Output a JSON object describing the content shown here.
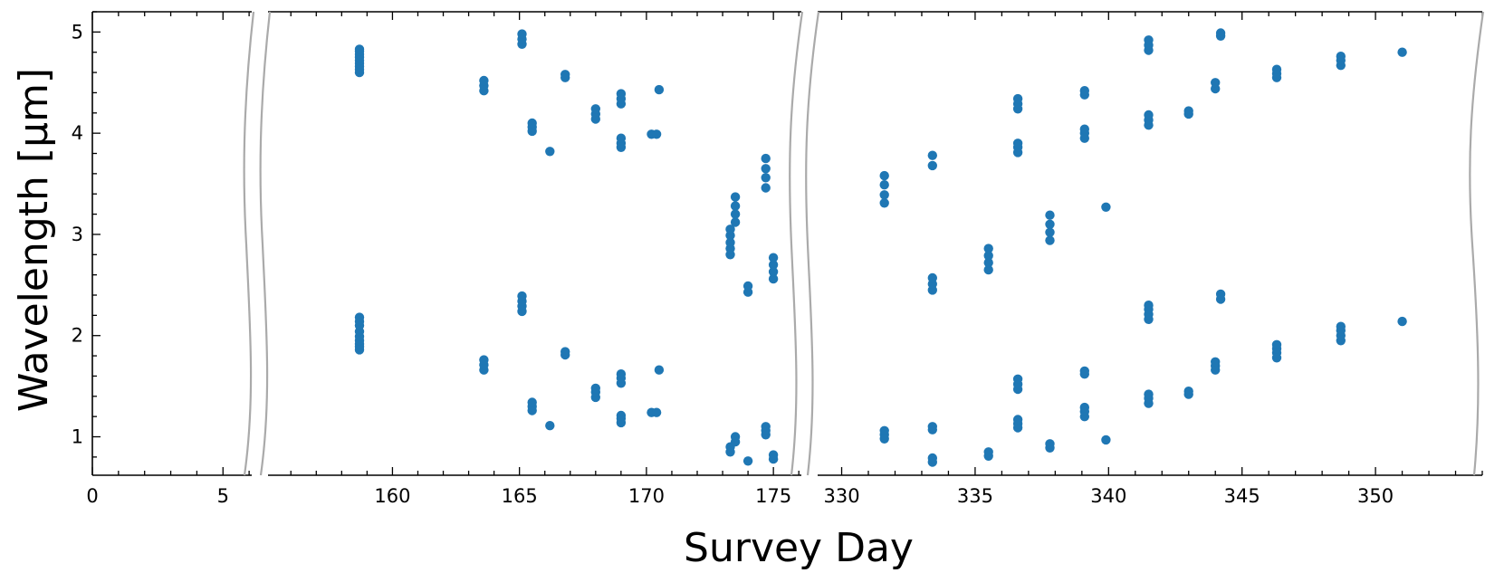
{
  "chart_data": {
    "type": "scatter",
    "title": "",
    "xlabel": "Survey Day",
    "ylabel": "Wavelength [μm]",
    "ylim": [
      0.62,
      5.2
    ],
    "yticks": [
      1,
      2,
      3,
      4,
      5
    ],
    "grid": false,
    "marker_color": "#1f77b4",
    "broken_axis": true,
    "panels": [
      {
        "xlim": [
          0,
          6.1
        ],
        "xticks": [
          0,
          5
        ]
      },
      {
        "xlim": [
          155.1,
          176.1
        ],
        "xticks": [
          160,
          165,
          170,
          175
        ]
      },
      {
        "xlim": [
          329.1,
          354.0
        ],
        "xticks": [
          330,
          335,
          340,
          345,
          350
        ]
      }
    ],
    "series": [
      {
        "points": [
          [
            158.7,
            4.6
          ],
          [
            158.7,
            4.63
          ],
          [
            158.7,
            4.66
          ],
          [
            158.7,
            4.69
          ],
          [
            158.7,
            4.72
          ],
          [
            158.7,
            4.75
          ],
          [
            158.7,
            4.78
          ],
          [
            158.7,
            4.81
          ],
          [
            158.7,
            4.83
          ],
          [
            158.7,
            1.86
          ],
          [
            158.7,
            1.89
          ],
          [
            158.7,
            1.92
          ],
          [
            158.7,
            1.95
          ],
          [
            158.7,
            1.99
          ],
          [
            158.7,
            2.04
          ],
          [
            158.7,
            2.1
          ],
          [
            158.7,
            2.14
          ],
          [
            158.7,
            2.18
          ],
          [
            163.6,
            4.42
          ],
          [
            163.6,
            4.47
          ],
          [
            163.6,
            4.52
          ],
          [
            163.6,
            1.66
          ],
          [
            163.6,
            1.71
          ],
          [
            163.6,
            1.76
          ],
          [
            165.1,
            4.88
          ],
          [
            165.1,
            4.93
          ],
          [
            165.1,
            4.98
          ],
          [
            165.1,
            2.24
          ],
          [
            165.1,
            2.29
          ],
          [
            165.1,
            2.34
          ],
          [
            165.1,
            2.39
          ],
          [
            165.5,
            4.02
          ],
          [
            165.5,
            4.06
          ],
          [
            165.5,
            4.1
          ],
          [
            165.5,
            1.26
          ],
          [
            165.5,
            1.3
          ],
          [
            165.5,
            1.34
          ],
          [
            166.2,
            3.82
          ],
          [
            166.2,
            1.11
          ],
          [
            166.8,
            4.55
          ],
          [
            166.8,
            4.58
          ],
          [
            166.8,
            1.81
          ],
          [
            166.8,
            1.84
          ],
          [
            168.0,
            4.14
          ],
          [
            168.0,
            4.19
          ],
          [
            168.0,
            4.24
          ],
          [
            168.0,
            1.39
          ],
          [
            168.0,
            1.44
          ],
          [
            168.0,
            1.48
          ],
          [
            169.0,
            4.29
          ],
          [
            169.0,
            4.34
          ],
          [
            169.0,
            4.39
          ],
          [
            169.0,
            3.86
          ],
          [
            169.0,
            3.9
          ],
          [
            169.0,
            3.95
          ],
          [
            169.0,
            1.53
          ],
          [
            169.0,
            1.58
          ],
          [
            169.0,
            1.62
          ],
          [
            169.0,
            1.14
          ],
          [
            169.0,
            1.18
          ],
          [
            169.0,
            1.21
          ],
          [
            170.2,
            3.99
          ],
          [
            170.4,
            3.99
          ],
          [
            170.2,
            1.24
          ],
          [
            170.4,
            1.24
          ],
          [
            170.5,
            4.43
          ],
          [
            170.5,
            1.66
          ],
          [
            173.3,
            2.8
          ],
          [
            173.3,
            2.86
          ],
          [
            173.3,
            2.92
          ],
          [
            173.3,
            2.99
          ],
          [
            173.3,
            3.05
          ],
          [
            173.5,
            3.12
          ],
          [
            173.5,
            3.2
          ],
          [
            173.5,
            3.28
          ],
          [
            173.5,
            3.37
          ],
          [
            173.3,
            0.85
          ],
          [
            173.3,
            0.9
          ],
          [
            173.5,
            0.95
          ],
          [
            173.5,
            1.0
          ],
          [
            174.0,
            2.43
          ],
          [
            174.0,
            2.49
          ],
          [
            174.0,
            0.76
          ],
          [
            174.7,
            3.46
          ],
          [
            174.7,
            3.56
          ],
          [
            174.7,
            3.65
          ],
          [
            174.7,
            3.75
          ],
          [
            174.7,
            1.02
          ],
          [
            174.7,
            1.06
          ],
          [
            174.7,
            1.1
          ],
          [
            175.0,
            2.56
          ],
          [
            175.0,
            2.63
          ],
          [
            175.0,
            2.7
          ],
          [
            175.0,
            2.77
          ],
          [
            175.0,
            0.78
          ],
          [
            175.0,
            0.82
          ],
          [
            331.6,
            3.31
          ],
          [
            331.6,
            3.39
          ],
          [
            331.6,
            3.49
          ],
          [
            331.6,
            3.58
          ],
          [
            331.6,
            0.98
          ],
          [
            331.6,
            1.02
          ],
          [
            331.6,
            1.06
          ],
          [
            333.4,
            3.68
          ],
          [
            333.4,
            3.78
          ],
          [
            333.4,
            2.45
          ],
          [
            333.4,
            2.51
          ],
          [
            333.4,
            2.57
          ],
          [
            333.4,
            0.75
          ],
          [
            333.4,
            0.79
          ],
          [
            333.4,
            1.07
          ],
          [
            333.4,
            1.1
          ],
          [
            335.5,
            2.65
          ],
          [
            335.5,
            2.72
          ],
          [
            335.5,
            2.79
          ],
          [
            335.5,
            2.86
          ],
          [
            335.5,
            0.81
          ],
          [
            335.5,
            0.85
          ],
          [
            336.6,
            3.81
          ],
          [
            336.6,
            3.86
          ],
          [
            336.6,
            3.9
          ],
          [
            336.6,
            4.24
          ],
          [
            336.6,
            4.29
          ],
          [
            336.6,
            4.34
          ],
          [
            336.6,
            1.47
          ],
          [
            336.6,
            1.52
          ],
          [
            336.6,
            1.57
          ],
          [
            336.6,
            1.09
          ],
          [
            336.6,
            1.13
          ],
          [
            336.6,
            1.17
          ],
          [
            337.8,
            2.94
          ],
          [
            337.8,
            3.02
          ],
          [
            337.8,
            3.1
          ],
          [
            337.8,
            3.19
          ],
          [
            337.8,
            0.89
          ],
          [
            337.8,
            0.93
          ],
          [
            339.1,
            3.95
          ],
          [
            339.1,
            4.0
          ],
          [
            339.1,
            4.04
          ],
          [
            339.1,
            4.38
          ],
          [
            339.1,
            4.42
          ],
          [
            339.1,
            1.2
          ],
          [
            339.1,
            1.25
          ],
          [
            339.1,
            1.29
          ],
          [
            339.1,
            1.62
          ],
          [
            339.1,
            1.65
          ],
          [
            339.9,
            3.27
          ],
          [
            339.9,
            0.97
          ],
          [
            341.5,
            4.82
          ],
          [
            341.5,
            4.87
          ],
          [
            341.5,
            4.92
          ],
          [
            341.5,
            4.08
          ],
          [
            341.5,
            4.13
          ],
          [
            341.5,
            4.18
          ],
          [
            341.5,
            2.16
          ],
          [
            341.5,
            2.21
          ],
          [
            341.5,
            2.26
          ],
          [
            341.5,
            2.3
          ],
          [
            341.5,
            1.33
          ],
          [
            341.5,
            1.38
          ],
          [
            341.5,
            1.42
          ],
          [
            343.0,
            4.19
          ],
          [
            343.0,
            4.22
          ],
          [
            343.0,
            1.42
          ],
          [
            343.0,
            1.45
          ],
          [
            344.0,
            4.44
          ],
          [
            344.0,
            4.5
          ],
          [
            344.0,
            1.66
          ],
          [
            344.0,
            1.7
          ],
          [
            344.0,
            1.74
          ],
          [
            344.2,
            4.96
          ],
          [
            344.2,
            4.99
          ],
          [
            344.2,
            2.36
          ],
          [
            344.2,
            2.41
          ],
          [
            346.3,
            4.55
          ],
          [
            346.3,
            4.59
          ],
          [
            346.3,
            4.63
          ],
          [
            346.3,
            1.78
          ],
          [
            346.3,
            1.83
          ],
          [
            346.3,
            1.87
          ],
          [
            346.3,
            1.91
          ],
          [
            348.7,
            4.67
          ],
          [
            348.7,
            4.72
          ],
          [
            348.7,
            4.76
          ],
          [
            348.7,
            1.95
          ],
          [
            348.7,
            2.0
          ],
          [
            348.7,
            2.05
          ],
          [
            348.7,
            2.09
          ],
          [
            351.0,
            4.8
          ],
          [
            351.0,
            2.14
          ]
        ]
      }
    ]
  }
}
